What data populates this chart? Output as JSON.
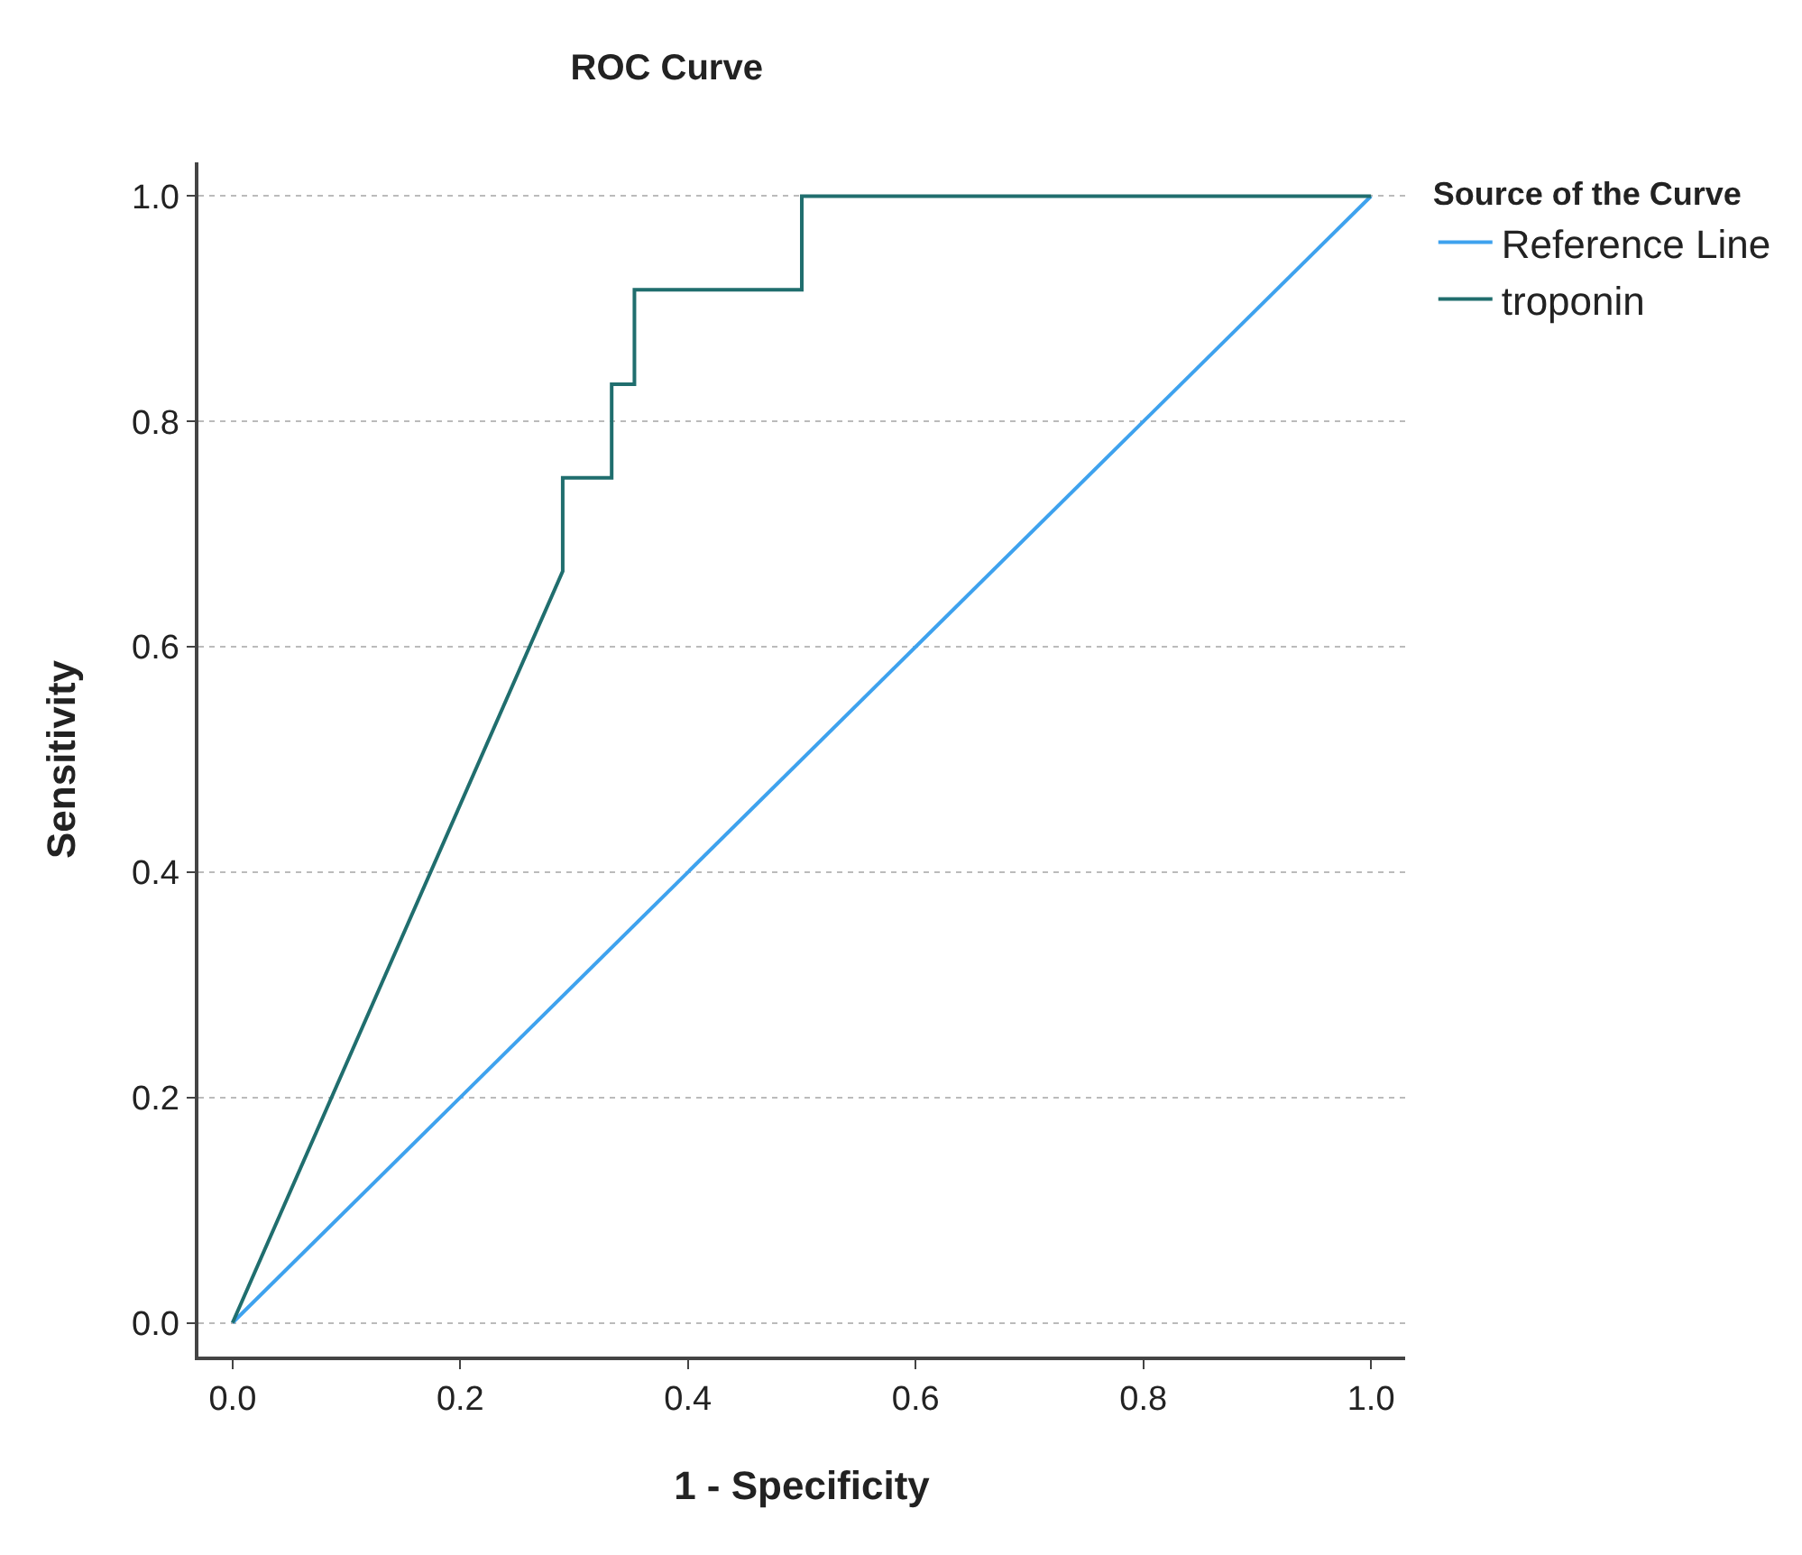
{
  "chart_data": {
    "type": "line",
    "title": "ROC Curve",
    "xlabel": "1 - Specificity",
    "ylabel": "Sensitivity",
    "legend_title": "Source of the Curve",
    "series": [
      {
        "name": "Reference Line",
        "color": "#3ea2ee",
        "x": [
          0,
          1
        ],
        "values": [
          0,
          1
        ]
      },
      {
        "name": "troponin",
        "color": "#206e6e",
        "x": [
          0,
          0.29,
          0.29,
          0.333,
          0.333,
          0.353,
          0.353,
          0.5,
          0.5,
          1
        ],
        "values": [
          0,
          0.667,
          0.75,
          0.75,
          0.833,
          0.833,
          0.917,
          0.917,
          1,
          1
        ]
      }
    ],
    "xlim": [
      -0.03,
      1.03
    ],
    "ylim": [
      -0.03,
      1.03
    ],
    "xticks": [
      {
        "value": 0,
        "label": "0.0"
      },
      0.2,
      0.4,
      0.6,
      0.8,
      {
        "value": 1,
        "label": "1.0"
      }
    ],
    "yticks": [
      {
        "value": 0,
        "label": "0.0"
      },
      0.2,
      0.4,
      0.6,
      0.8,
      {
        "value": 1,
        "label": "1.0"
      }
    ],
    "grid": "y",
    "legend": "top right",
    "marker": "none",
    "line_style": "solid"
  }
}
